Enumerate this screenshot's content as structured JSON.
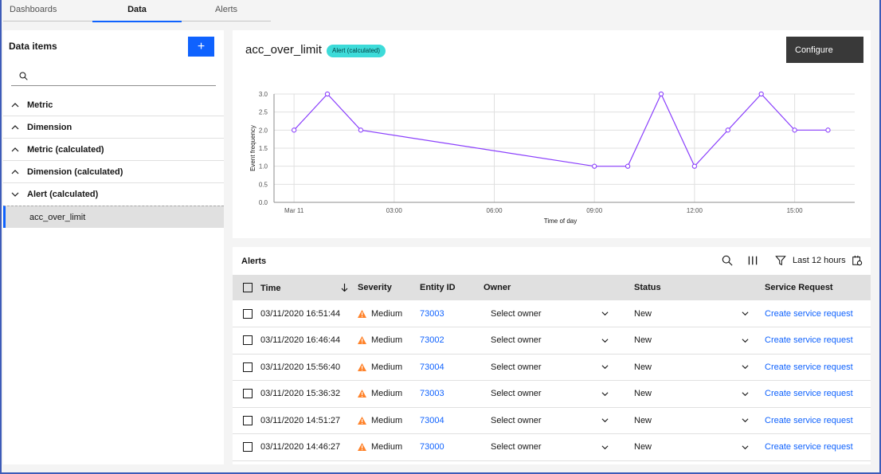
{
  "tabs": [
    {
      "label": "Dashboards"
    },
    {
      "label": "Data"
    },
    {
      "label": "Alerts"
    }
  ],
  "left": {
    "title": "Data items",
    "add_label": "+",
    "search_placeholder": "",
    "items": [
      {
        "label": "Metric"
      },
      {
        "label": "Dimension"
      },
      {
        "label": "Metric (calculated)"
      },
      {
        "label": "Dimension (calculated)"
      },
      {
        "label": "Alert (calculated)"
      }
    ],
    "sub_item": "acc_over_limit"
  },
  "chart_panel": {
    "title": "acc_over_limit",
    "badge": "Alert (calculated)",
    "configure_label": "Configure"
  },
  "chart_data": {
    "type": "line",
    "title": "",
    "xlabel": "Time of day",
    "ylabel": "Event frequency",
    "ylim": [
      0,
      3.0
    ],
    "yticks": [
      "0.0",
      "0.5",
      "1.0",
      "1.5",
      "2.0",
      "2.5",
      "3.0"
    ],
    "xlim_hours": [
      -0.6,
      16.8
    ],
    "xticks": [
      {
        "hour": 0,
        "label": "Mar 11"
      },
      {
        "hour": 3,
        "label": "03:00"
      },
      {
        "hour": 6,
        "label": "06:00"
      },
      {
        "hour": 9,
        "label": "09:00"
      },
      {
        "hour": 12,
        "label": "12:00"
      },
      {
        "hour": 15,
        "label": "15:00"
      }
    ],
    "series": [
      {
        "name": "acc_over_limit",
        "color": "#8a3ffc",
        "x": [
          0,
          1,
          2,
          9,
          10,
          11,
          12,
          13,
          14,
          15,
          16
        ],
        "values": [
          2,
          3,
          2,
          1,
          1,
          3,
          1,
          2,
          3,
          2,
          2
        ]
      }
    ]
  },
  "alerts": {
    "title": "Alerts",
    "range_label": "Last 12 hours",
    "columns": [
      "Time",
      "Severity",
      "Entity ID",
      "Owner",
      "Status",
      "Service Request"
    ],
    "rows": [
      {
        "time": "03/11/2020 16:51:44",
        "severity": "Medium",
        "entity": "73003",
        "owner": "Select owner",
        "status": "New",
        "request": "Create service request"
      },
      {
        "time": "03/11/2020 16:46:44",
        "severity": "Medium",
        "entity": "73002",
        "owner": "Select owner",
        "status": "New",
        "request": "Create service request"
      },
      {
        "time": "03/11/2020 15:56:40",
        "severity": "Medium",
        "entity": "73004",
        "owner": "Select owner",
        "status": "New",
        "request": "Create service request"
      },
      {
        "time": "03/11/2020 15:36:32",
        "severity": "Medium",
        "entity": "73003",
        "owner": "Select owner",
        "status": "New",
        "request": "Create service request"
      },
      {
        "time": "03/11/2020 14:51:27",
        "severity": "Medium",
        "entity": "73004",
        "owner": "Select owner",
        "status": "New",
        "request": "Create service request"
      },
      {
        "time": "03/11/2020 14:46:27",
        "severity": "Medium",
        "entity": "73000",
        "owner": "Select owner",
        "status": "New",
        "request": "Create service request"
      }
    ]
  },
  "colors": {
    "accent": "#0f62fe",
    "badge": "#3ddbd9",
    "warning": "#ff832b"
  }
}
